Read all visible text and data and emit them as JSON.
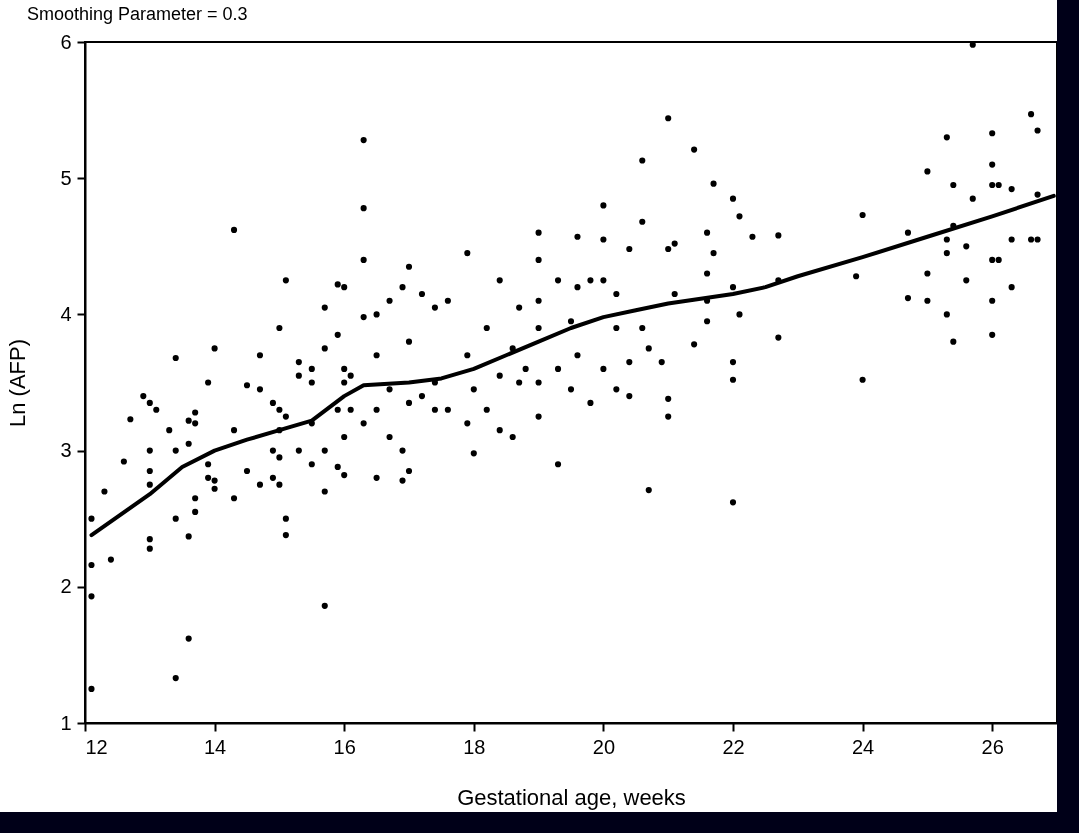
{
  "chart_data": {
    "type": "scatter",
    "title": "Smoothing Parameter = 0.3",
    "xlabel": "Gestational age, weeks",
    "ylabel": "Ln (AFP)",
    "xlim": [
      12,
      27
    ],
    "ylim": [
      1,
      6
    ],
    "xticks": [
      12,
      14,
      16,
      18,
      20,
      22,
      24,
      26
    ],
    "yticks": [
      1,
      2,
      3,
      4,
      5,
      6
    ],
    "grid": false,
    "series": [
      {
        "color": "#000000",
        "marker": "circle",
        "x": [
          12.1,
          12.1,
          12.1,
          12.1,
          12.3,
          12.4,
          12.6,
          12.7,
          12.9,
          13.0,
          13.0,
          13.0,
          13.0,
          13.0,
          13.0,
          13.1,
          13.3,
          13.4,
          13.4,
          13.4,
          13.4,
          13.6,
          13.6,
          13.6,
          13.6,
          13.7,
          13.7,
          13.7,
          13.7,
          13.9,
          13.9,
          13.9,
          14.0,
          14.0,
          14.0,
          14.3,
          14.3,
          14.3,
          14.5,
          14.5,
          14.7,
          14.7,
          14.7,
          14.9,
          14.9,
          14.9,
          15.0,
          15.0,
          15.0,
          15.0,
          15.0,
          15.1,
          15.1,
          15.1,
          15.1,
          15.3,
          15.3,
          15.3,
          15.5,
          15.5,
          15.5,
          15.5,
          15.7,
          15.7,
          15.7,
          15.7,
          15.7,
          15.9,
          15.9,
          15.9,
          15.9,
          16.0,
          16.0,
          16.0,
          16.0,
          16.0,
          16.1,
          16.1,
          16.3,
          16.3,
          16.3,
          16.3,
          16.3,
          16.5,
          16.5,
          16.5,
          16.5,
          16.7,
          16.7,
          16.7,
          16.9,
          16.9,
          16.9,
          17.0,
          17.0,
          17.0,
          17.0,
          17.2,
          17.2,
          17.4,
          17.4,
          17.4,
          17.6,
          17.6,
          17.9,
          17.9,
          17.9,
          18.0,
          18.0,
          18.2,
          18.2,
          18.4,
          18.4,
          18.4,
          18.6,
          18.6,
          18.7,
          18.7,
          18.8,
          19.0,
          19.0,
          19.0,
          19.0,
          19.0,
          19.0,
          19.3,
          19.3,
          19.3,
          19.5,
          19.5,
          19.6,
          19.6,
          19.6,
          19.8,
          19.8,
          20.0,
          20.0,
          20.0,
          20.0,
          20.2,
          20.2,
          20.2,
          20.4,
          20.4,
          20.4,
          20.6,
          20.6,
          20.6,
          20.7,
          20.7,
          20.9,
          21.0,
          21.0,
          21.0,
          21.0,
          21.1,
          21.1,
          21.4,
          21.4,
          21.6,
          21.6,
          21.6,
          21.6,
          21.7,
          21.7,
          22.0,
          22.0,
          22.0,
          22.0,
          22.0,
          22.1,
          22.1,
          22.3,
          22.7,
          22.7,
          22.7,
          23.9,
          24.0,
          24.0,
          24.7,
          24.7,
          25.0,
          25.0,
          25.0,
          25.3,
          25.3,
          25.3,
          25.3,
          25.4,
          25.4,
          25.4,
          25.6,
          25.6,
          25.7,
          25.7,
          26.0,
          26.0,
          26.0,
          26.0,
          26.0,
          26.0,
          26.1,
          26.1,
          26.3,
          26.3,
          26.3,
          26.6,
          26.6,
          26.7,
          26.7,
          26.7
        ],
        "values": [
          2.5,
          2.16,
          1.93,
          1.25,
          2.7,
          2.2,
          2.92,
          3.23,
          3.4,
          3.35,
          3.0,
          2.85,
          2.75,
          2.35,
          2.28,
          3.3,
          3.15,
          3.68,
          3.0,
          2.5,
          1.33,
          3.22,
          3.05,
          2.37,
          1.62,
          3.28,
          3.2,
          2.65,
          2.55,
          3.5,
          2.9,
          2.8,
          3.75,
          2.78,
          2.72,
          4.62,
          3.15,
          2.65,
          3.48,
          2.85,
          3.7,
          3.45,
          2.75,
          3.35,
          3.0,
          2.8,
          3.9,
          3.3,
          3.15,
          2.95,
          2.75,
          4.25,
          2.5,
          2.38,
          3.25,
          3.65,
          3.55,
          3.0,
          3.6,
          3.5,
          2.9,
          3.2,
          4.05,
          3.75,
          2.7,
          1.86,
          3.0,
          4.22,
          3.85,
          3.3,
          2.88,
          4.2,
          3.6,
          3.5,
          3.1,
          2.82,
          3.55,
          3.3,
          5.28,
          4.78,
          4.4,
          3.98,
          3.2,
          4.0,
          3.7,
          2.8,
          3.3,
          4.1,
          3.45,
          3.1,
          4.2,
          3.0,
          2.78,
          4.35,
          3.8,
          3.35,
          2.85,
          4.15,
          3.4,
          4.05,
          3.5,
          3.3,
          4.1,
          3.3,
          4.45,
          3.7,
          3.2,
          3.45,
          2.98,
          3.9,
          3.3,
          4.25,
          3.55,
          3.15,
          3.75,
          3.1,
          4.05,
          3.5,
          3.6,
          4.6,
          4.4,
          4.1,
          3.9,
          3.5,
          3.25,
          4.25,
          3.6,
          2.9,
          3.95,
          3.45,
          4.57,
          4.2,
          3.7,
          4.25,
          3.35,
          4.8,
          4.55,
          4.25,
          3.6,
          4.15,
          3.45,
          3.9,
          4.48,
          3.65,
          3.4,
          5.13,
          4.68,
          3.9,
          2.71,
          3.75,
          3.65,
          5.44,
          4.48,
          3.38,
          3.25,
          4.52,
          4.15,
          5.21,
          3.78,
          4.6,
          4.3,
          4.1,
          3.95,
          4.96,
          4.45,
          4.85,
          4.2,
          3.65,
          3.52,
          2.62,
          4.72,
          4.0,
          4.57,
          4.58,
          4.25,
          3.83,
          4.28,
          4.73,
          3.52,
          4.12,
          4.6,
          5.05,
          4.3,
          4.1,
          5.3,
          4.55,
          4.0,
          4.45,
          4.95,
          4.65,
          3.8,
          4.5,
          4.25,
          5.98,
          4.85,
          5.33,
          5.1,
          4.95,
          4.4,
          4.1,
          3.85,
          4.95,
          4.4,
          4.92,
          4.55,
          4.2,
          5.47,
          4.55,
          5.35,
          4.88,
          4.55
        ]
      },
      {
        "type": "line",
        "color": "#000000",
        "line_style": "solid",
        "x": [
          12.1,
          13,
          13.5,
          14,
          14.5,
          15,
          15.5,
          16,
          16.3,
          17,
          17.5,
          18,
          18.5,
          19,
          19.5,
          20,
          20.5,
          21,
          22,
          22.5,
          23,
          24,
          25,
          26,
          26.95
        ],
        "values": [
          2.38,
          2.68,
          2.88,
          3.0,
          3.08,
          3.15,
          3.22,
          3.4,
          3.48,
          3.5,
          3.53,
          3.6,
          3.7,
          3.8,
          3.9,
          3.98,
          4.03,
          4.08,
          4.15,
          4.2,
          4.28,
          4.42,
          4.57,
          4.72,
          4.87
        ]
      }
    ]
  }
}
